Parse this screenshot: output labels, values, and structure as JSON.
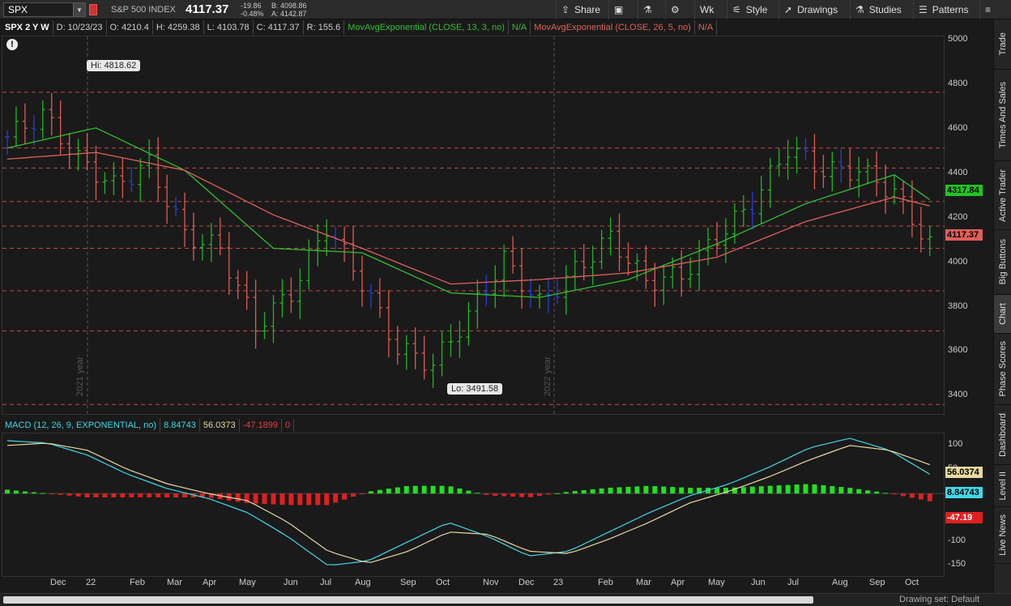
{
  "toolbar": {
    "symbol": "SPX",
    "description": "S&P 500 INDEX",
    "last": "4117.37",
    "change": "-19.86",
    "change_pct": "-0.48%",
    "bid": "B: 4098.86",
    "ask": "A: 4142.87",
    "buttons": {
      "share": "Share",
      "wk": "Wk",
      "style": "Style",
      "drawings": "Drawings",
      "studies": "Studies",
      "patterns": "Patterns"
    }
  },
  "legend": {
    "title": "SPX 2 Y W",
    "date": "D: 10/23/23",
    "open": "O: 4210.4",
    "high": "H: 4259.38",
    "low": "L: 4103.78",
    "close": "C: 4117.37",
    "range": "R: 155.6",
    "ema13": "MovAvgExponential (CLOSE, 13, 3, no)",
    "ema13_val": "N/A",
    "ema26": "MovAvgExponential (CLOSE, 26, 5, no)",
    "ema26_val": "N/A"
  },
  "callouts": {
    "hi": "Hi: 4818.62",
    "lo": "Lo: 3491.58"
  },
  "year_labels": [
    "2021 year",
    "2022 year"
  ],
  "price_axis": [
    "5000",
    "4800",
    "4600",
    "4400",
    "4200",
    "4000",
    "3800",
    "3600",
    "3400"
  ],
  "price_tags": {
    "ema": "4317.84",
    "last": "4117.37"
  },
  "macd": {
    "title": "MACD (12, 26, 9, EXPONENTIAL, no)",
    "value": "8.84743",
    "avg": "56.0373",
    "diff": "-47.1899",
    "zero": "0",
    "axis": [
      "100",
      "50",
      "0",
      "-50",
      "-100",
      "-150"
    ],
    "tags": {
      "avg": "56.0374",
      "value": "8.84743",
      "diff": "-47.19"
    }
  },
  "x_axis": [
    "Dec",
    "22",
    "Feb",
    "Mar",
    "Apr",
    "May",
    "Jun",
    "Jul",
    "Aug",
    "Sep",
    "Oct",
    "Nov",
    "Dec",
    "23",
    "Feb",
    "Mar",
    "Apr",
    "May",
    "Jun",
    "Jul",
    "Aug",
    "Sep",
    "Oct"
  ],
  "sidebar": [
    "Trade",
    "Times And Sales",
    "Active Trader",
    "Big Buttons",
    "Chart",
    "Phase Scores",
    "Dashboard",
    "Level II",
    "Live News"
  ],
  "bottom": {
    "drawing_set": "Drawing set: Default"
  },
  "colors": {
    "up": "#22b422",
    "down": "#e05a50",
    "neutral": "#2a3cd6",
    "ema_fast": "#2fbf2f",
    "ema_slow": "#e0605a",
    "macd": "#3fd8e8",
    "signal": "#e8d8a0"
  },
  "chart_data": {
    "type": "line",
    "series": [
      {
        "name": "SPX",
        "x": [
          0,
          4,
          8,
          12,
          16,
          20,
          24,
          28,
          32,
          36,
          40,
          44,
          48,
          52,
          56,
          60,
          64,
          68,
          72,
          76,
          80,
          84,
          88,
          92,
          96,
          100,
          104
        ],
        "values": [
          4600,
          4700,
          4500,
          4380,
          4480,
          4160,
          4100,
          3750,
          3900,
          4200,
          3950,
          3650,
          3580,
          3800,
          4050,
          3850,
          4000,
          4150,
          3950,
          3980,
          4150,
          4300,
          4550,
          4450,
          4450,
          4350,
          4117
        ]
      },
      {
        "name": "MovAvgExponential (CLOSE, 13, 3, no)",
        "x": [
          0,
          10,
          20,
          30,
          40,
          50,
          60,
          70,
          80,
          90,
          100,
          104
        ],
        "values": [
          4550,
          4640,
          4450,
          4100,
          4080,
          3900,
          3880,
          3960,
          4120,
          4300,
          4430,
          4318
        ]
      },
      {
        "name": "MovAvgExponential (CLOSE, 26, 5, no)",
        "x": [
          0,
          10,
          20,
          30,
          40,
          50,
          60,
          70,
          80,
          90,
          100,
          104
        ],
        "values": [
          4500,
          4530,
          4450,
          4250,
          4100,
          3940,
          3960,
          3990,
          4060,
          4220,
          4330,
          4290
        ]
      }
    ],
    "ylim": [
      3350,
      5050
    ]
  }
}
